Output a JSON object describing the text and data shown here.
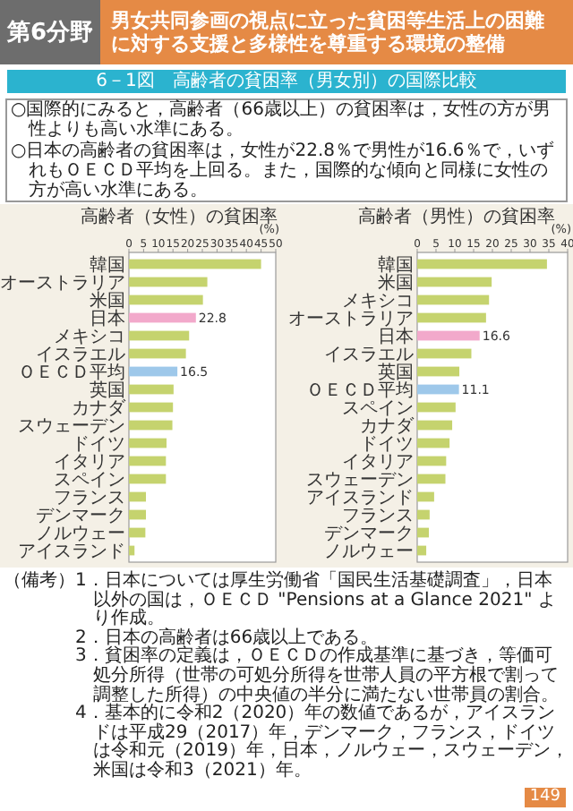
{
  "chart_data": [
    {
      "type": "bar",
      "orientation": "horizontal",
      "title": "高齢者（女性）の貧困率",
      "xlabel": "(%)",
      "categories": [
        "韓国",
        "オーストラリア",
        "米国",
        "日本",
        "メキシコ",
        "イスラエル",
        "ＯＥＣＤ平均",
        "英国",
        "カナダ",
        "スウェーデン",
        "ドイツ",
        "イタリア",
        "スペイン",
        "フランス",
        "デンマーク",
        "ノルウェー",
        "アイスランド"
      ],
      "values": [
        45,
        26.7,
        25.2,
        22.8,
        20.5,
        19.4,
        16.5,
        15.2,
        15,
        14.8,
        12.8,
        12.6,
        12.6,
        5.8,
        5.8,
        5.6,
        1.9
      ],
      "colors": [
        "#c5d36e",
        "#c5d36e",
        "#c5d36e",
        "#f2a9cb",
        "#c5d36e",
        "#c5d36e",
        "#9ec8ea",
        "#c5d36e",
        "#c5d36e",
        "#c5d36e",
        "#c5d36e",
        "#c5d36e",
        "#c5d36e",
        "#c5d36e",
        "#c5d36e",
        "#c5d36e",
        "#c5d36e"
      ],
      "value_labels": [
        null,
        null,
        null,
        "22.8",
        null,
        null,
        "16.5",
        null,
        null,
        null,
        null,
        null,
        null,
        null,
        null,
        null,
        null
      ],
      "xlim": [
        0,
        50
      ],
      "xticks": [
        0,
        5,
        10,
        15,
        20,
        25,
        30,
        35,
        40,
        45,
        50
      ],
      "annotations": [
        "第6分野",
        "男女共同参画の視点に立った貧困等生活上の困難に対する支援と多様性を尊重する環境の整備",
        "6－1図　高齢者の貧困率（男女別）の国際比較",
        "○国際的にみると，高齢者（66歳以上）の貧困率は，女性の方が男性よりも高い水準にある。",
        "○日本の高齢者の貧困率は，女性が22.8％で男性が16.6％で，いずれもＯＥＣＤ平均を上回る。また，国際的な傾向と同様に女性の方が高い水準にある。",
        "（備考）",
        "1．日本については厚生労働省「国民生活基礎調査」，日本以外の国は，ＯＥＣＤ \"Pensions at a Glance 2021\" より作成。",
        "2．日本の高齢者は66歳以上である。",
        "3．貧困率の定義は，ＯＥＣＤの作成基準に基づき，等価可処分所得（世帯の可処分所得を世帯人員の平方根で割って調整した所得）の中央値の半分に満たない世帯員の割合。",
        "4．基本的に令和2（2020）年の数値であるが，アイスランドは平成29（2017）年，デンマーク，フランス，ドイツは令和元（2019）年，日本，ノルウェー，スウェーデン，米国は令和3（2021）年。",
        "149"
      ]
    },
    {
      "type": "bar",
      "orientation": "horizontal",
      "title": "高齢者（男性）の貧困率",
      "xlabel": "(%)",
      "categories": [
        "韓国",
        "米国",
        "メキシコ",
        "オーストラリア",
        "日本",
        "イスラエル",
        "英国",
        "ＯＥＣＤ平均",
        "スペイン",
        "カナダ",
        "ドイツ",
        "イタリア",
        "スウェーデン",
        "アイスランド",
        "フランス",
        "デンマーク",
        "ノルウェー"
      ],
      "values": [
        34.5,
        19.8,
        19.1,
        18.3,
        16.6,
        14.4,
        11.2,
        11.1,
        10.2,
        9.3,
        8.6,
        7.7,
        7.5,
        4.5,
        3.3,
        3.1,
        2.4
      ],
      "colors": [
        "#c5d36e",
        "#c5d36e",
        "#c5d36e",
        "#c5d36e",
        "#f2a9cb",
        "#c5d36e",
        "#c5d36e",
        "#9ec8ea",
        "#c5d36e",
        "#c5d36e",
        "#c5d36e",
        "#c5d36e",
        "#c5d36e",
        "#c5d36e",
        "#c5d36e",
        "#c5d36e",
        "#c5d36e"
      ],
      "value_labels": [
        null,
        null,
        null,
        null,
        "16.6",
        null,
        null,
        "11.1",
        null,
        null,
        null,
        null,
        null,
        null,
        null,
        null,
        null
      ],
      "xlim": [
        0,
        40
      ],
      "xticks": [
        0,
        5,
        10,
        15,
        20,
        25,
        30,
        35,
        40
      ]
    }
  ]
}
